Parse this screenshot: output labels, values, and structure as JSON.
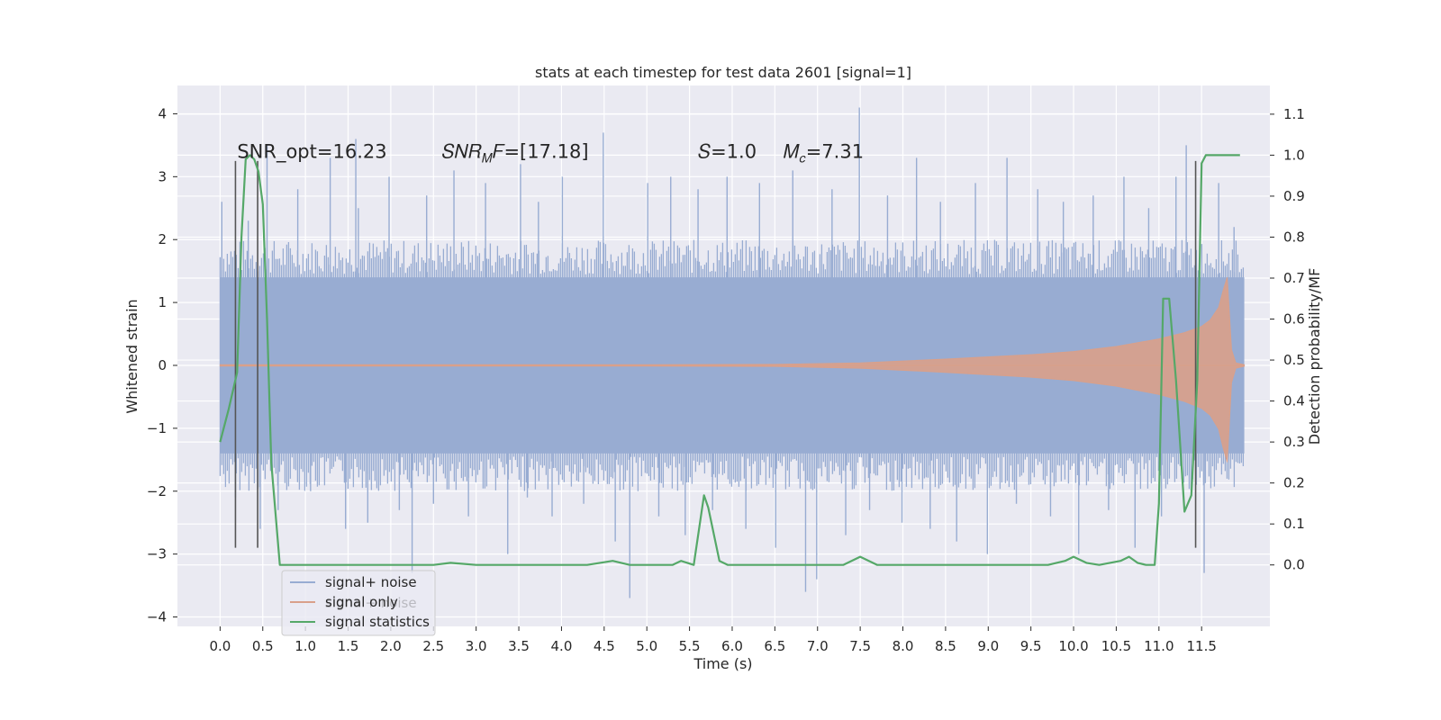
{
  "chart_data": {
    "type": "line",
    "title": "stats at each timestep for test data 2601 [signal=1]",
    "xlabel": "Time (s)",
    "ylabel": "Whitened strain",
    "y2label": "Detection probability/MF",
    "xlim": [
      -0.5,
      12.3
    ],
    "ylim": [
      -4.15,
      4.45
    ],
    "y2lim": [
      -0.15,
      1.17
    ],
    "x_ticks": [
      0.0,
      0.5,
      1.0,
      1.5,
      2.0,
      2.5,
      3.0,
      3.5,
      4.0,
      4.5,
      5.0,
      5.5,
      6.0,
      6.5,
      7.0,
      7.5,
      8.0,
      8.5,
      9.0,
      9.5,
      10.0,
      10.5,
      11.0,
      11.5
    ],
    "x_tick_labels": [
      "0.0",
      "0.5",
      "1.0",
      "1.5",
      "2.0",
      "2.5",
      "3.0",
      "3.5",
      "4.0",
      "4.5",
      "5.0",
      "5.5",
      "6.0",
      "6.5",
      "7.0",
      "7.5",
      "8.0",
      "8.5",
      "9.0",
      "9.5",
      "10.0",
      "10.5",
      "11.0",
      "11.5"
    ],
    "y_ticks": [
      -4,
      -3,
      -2,
      -1,
      0,
      1,
      2,
      3,
      4
    ],
    "y_tick_labels": [
      "−4",
      "−3",
      "−2",
      "−1",
      "0",
      "1",
      "2",
      "3",
      "4"
    ],
    "y2_ticks": [
      0.0,
      0.1,
      0.2,
      0.3,
      0.4,
      0.5,
      0.6,
      0.7,
      0.8,
      0.9,
      1.0,
      1.1
    ],
    "y2_tick_labels": [
      "0.0",
      "0.1",
      "0.2",
      "0.3",
      "0.4",
      "0.5",
      "0.6",
      "0.7",
      "0.8",
      "0.9",
      "1.0",
      "1.1"
    ],
    "grid": true,
    "legend_position": "lower-left",
    "annotations": [
      {
        "text": "SNR_opt=16.23",
        "x": 0.2,
        "y": 3.3
      },
      {
        "text": "𝑆𝑁𝑅",
        "sub": "𝑀",
        "tail": "𝐹=[17.18]",
        "x": 2.6,
        "y": 3.3
      },
      {
        "text": "𝑆=1.0",
        "x": 5.6,
        "y": 3.3
      },
      {
        "text": "𝑀",
        "sub": "𝑐",
        "tail": "=7.31",
        "x": 6.6,
        "y": 3.3
      }
    ],
    "colors": {
      "background": "#eaeaf2",
      "grid": "#ffffff",
      "noise": "#98acd2",
      "signal": "#d9a08a",
      "stats": "#55a868",
      "vlines": "#555555"
    },
    "series": [
      {
        "name": "signal+ noise",
        "axis": "left",
        "band_x": [
          0.0,
          12.0
        ],
        "band_y": [
          -1.4,
          1.4
        ],
        "spike_x": [
          0.02,
          0.18,
          0.33,
          0.47,
          0.55,
          0.68,
          0.91,
          1.06,
          1.29,
          1.47,
          1.59,
          1.62,
          1.73,
          1.98,
          2.1,
          2.25,
          2.42,
          2.5,
          2.74,
          2.91,
          3.11,
          3.37,
          3.52,
          3.6,
          3.73,
          3.89,
          4.01,
          4.26,
          4.49,
          4.63,
          4.8,
          5.01,
          5.14,
          5.28,
          5.45,
          5.6,
          5.77,
          5.94,
          6.16,
          6.32,
          6.51,
          6.71,
          6.86,
          6.99,
          7.17,
          7.33,
          7.49,
          7.61,
          7.82,
          7.99,
          8.16,
          8.32,
          8.44,
          8.63,
          8.85,
          8.99,
          9.22,
          9.33,
          9.58,
          9.73,
          9.88,
          10.06,
          10.23,
          10.41,
          10.59,
          10.72,
          10.88,
          11.03,
          11.2,
          11.32,
          11.53,
          11.7,
          11.88
        ],
        "spike_y": [
          2.6,
          -2.1,
          2.3,
          -2.6,
          3.5,
          -2.3,
          2.8,
          -2.0,
          3.3,
          -2.6,
          3.6,
          2.5,
          -2.5,
          3.0,
          -2.3,
          -3.3,
          2.7,
          -2.2,
          3.1,
          -2.4,
          2.9,
          -3.0,
          3.2,
          -2.1,
          2.6,
          -2.4,
          3.0,
          -2.2,
          3.7,
          -2.8,
          -3.7,
          2.9,
          -2.4,
          3.0,
          -2.7,
          2.8,
          -2.3,
          3.0,
          -2.6,
          2.9,
          -2.9,
          3.1,
          -3.6,
          -3.4,
          2.8,
          -2.7,
          4.1,
          -2.3,
          2.7,
          -2.5,
          3.3,
          -2.6,
          2.6,
          -2.8,
          2.9,
          -3.0,
          3.3,
          -2.2,
          2.8,
          -2.4,
          2.6,
          -3.0,
          2.7,
          -2.3,
          3.0,
          -2.9,
          2.5,
          -2.4,
          3.0,
          3.5,
          -3.3,
          2.9,
          2.2
        ]
      },
      {
        "name": "signal only",
        "axis": "left",
        "x": [
          0.0,
          5.0,
          6.5,
          7.5,
          8.5,
          9.5,
          10.0,
          10.5,
          11.0,
          11.3,
          11.5,
          11.6,
          11.7,
          11.75,
          11.8,
          11.85,
          11.9,
          12.0
        ],
        "amp": [
          0.01,
          0.01,
          0.015,
          0.04,
          0.1,
          0.17,
          0.22,
          0.3,
          0.42,
          0.52,
          0.62,
          0.72,
          0.92,
          1.18,
          1.4,
          0.25,
          0.04,
          0.01
        ]
      },
      {
        "name": "signal statistics",
        "axis": "right",
        "x": [
          0.0,
          0.1,
          0.2,
          0.25,
          0.3,
          0.35,
          0.4,
          0.45,
          0.5,
          0.55,
          0.6,
          0.7,
          1.0,
          1.5,
          2.0,
          2.5,
          2.7,
          3.0,
          3.5,
          4.0,
          4.3,
          4.6,
          4.8,
          5.0,
          5.3,
          5.4,
          5.55,
          5.62,
          5.67,
          5.72,
          5.85,
          5.95,
          6.5,
          7.0,
          7.3,
          7.5,
          7.7,
          8.0,
          9.0,
          9.7,
          9.9,
          10.0,
          10.15,
          10.3,
          10.55,
          10.65,
          10.75,
          10.85,
          10.95,
          11.0,
          11.05,
          11.12,
          11.2,
          11.3,
          11.38,
          11.45,
          11.5,
          11.55,
          11.6,
          11.8,
          11.95
        ],
        "y": [
          0.3,
          0.38,
          0.47,
          0.8,
          0.99,
          1.0,
          0.99,
          0.96,
          0.88,
          0.6,
          0.25,
          0.0,
          0.0,
          0.0,
          0.0,
          0.0,
          0.005,
          0.0,
          0.0,
          0.0,
          0.0,
          0.01,
          0.0,
          0.0,
          0.0,
          0.01,
          0.0,
          0.1,
          0.17,
          0.14,
          0.01,
          0.0,
          0.0,
          0.0,
          0.0,
          0.02,
          0.0,
          0.0,
          0.0,
          0.0,
          0.01,
          0.02,
          0.005,
          0.0,
          0.01,
          0.02,
          0.005,
          0.0,
          0.0,
          0.15,
          0.65,
          0.65,
          0.45,
          0.13,
          0.17,
          0.45,
          0.98,
          1.0,
          1.0,
          1.0,
          1.0
        ]
      }
    ],
    "vlines": {
      "x": [
        0.18,
        0.44,
        11.43
      ],
      "ymin": -2.9,
      "ymax": 3.25
    },
    "legend_hidden_text": "signal+ noise"
  }
}
